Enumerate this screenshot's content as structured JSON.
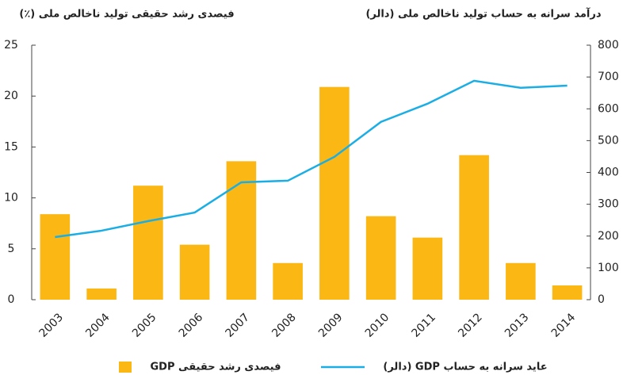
{
  "chart_data": {
    "type": "bar_line",
    "y_label": "فیصدی رشد حقیقی تولید ناخالص ملی (٪)",
    "y2_label": "درآمد سرانه به حساب تولید ناخالص ملی  (دالر)",
    "categories": [
      "2003",
      "2004",
      "2005",
      "2006",
      "2007",
      "2008",
      "2009",
      "2010",
      "2011",
      "2012",
      "2013",
      "2014"
    ],
    "series": [
      {
        "name": "فیصدی رشد حقیقی GDP",
        "type": "bar",
        "color": "#fbb714",
        "values": [
          8.4,
          1.1,
          11.2,
          5.4,
          13.6,
          3.6,
          20.9,
          8.2,
          6.1,
          14.2,
          3.6,
          1.4
        ]
      },
      {
        "name": "عاید سرانه به حساب GDP (دالر)",
        "type": "line",
        "axis": "y2",
        "color": "#1aaee5",
        "values": [
          197,
          217,
          247,
          274,
          369,
          374,
          449,
          559,
          616,
          688,
          666,
          673
        ]
      }
    ],
    "ylim": [
      0,
      25
    ],
    "yticks": [
      0,
      5,
      10,
      15,
      20,
      25
    ],
    "y2lim": [
      0,
      800
    ],
    "y2ticks": [
      0,
      100,
      200,
      300,
      400,
      500,
      600,
      700,
      800
    ],
    "grid": false
  }
}
